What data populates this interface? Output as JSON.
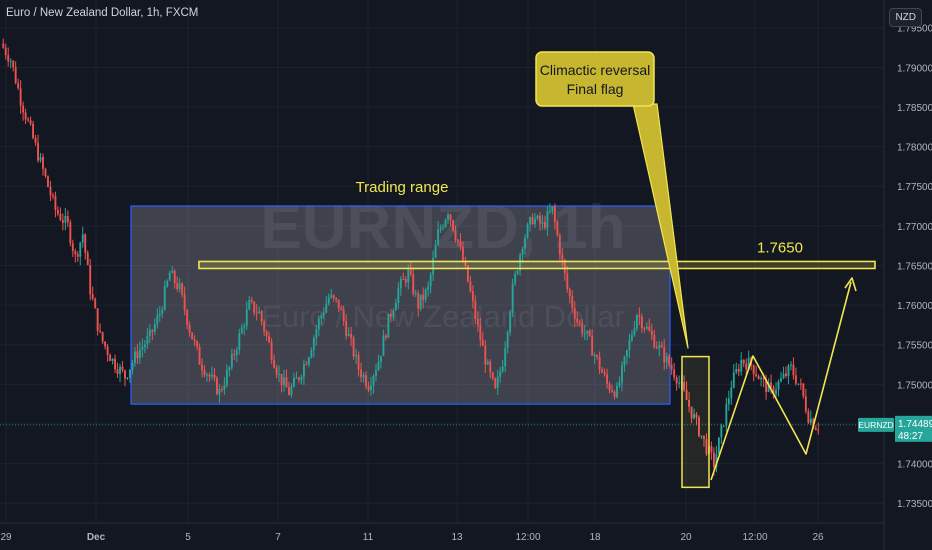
{
  "header": {
    "title": "Euro / New Zealand Dollar, 1h, FXCM",
    "currency": "NZD"
  },
  "watermark": {
    "symbol": "EURNZD, 1h",
    "name": "Euro / New Zealand Dollar"
  },
  "price_tag": {
    "symbol": "EURNZD",
    "price": "1.74489",
    "countdown": "48:27"
  },
  "colors": {
    "background": "#131722",
    "up": "#26a69a",
    "down": "#ef5350",
    "annotation": "#f2e64f",
    "range_border": "#2962ff",
    "callout_fill": "#c7b62f"
  },
  "chart_data": {
    "type": "candlestick",
    "ylim": [
      1.7325,
      1.7985
    ],
    "y_ticks": [
      "1.79500",
      "1.79000",
      "1.78500",
      "1.78000",
      "1.77500",
      "1.77000",
      "1.76500",
      "1.76000",
      "1.75500",
      "1.75000",
      "1.74500",
      "1.74000",
      "1.73500"
    ],
    "x_ticks": [
      "29",
      "Dec",
      "5",
      "7",
      "11",
      "13",
      "12:00",
      "18",
      "20",
      "12:00",
      "26"
    ],
    "trend_path": [
      [
        0,
        1.793
      ],
      [
        4,
        1.791
      ],
      [
        8,
        1.786
      ],
      [
        13,
        1.781
      ],
      [
        18,
        1.776
      ],
      [
        22,
        1.772
      ],
      [
        27,
        1.77
      ],
      [
        30,
        1.766
      ],
      [
        33,
        1.769
      ],
      [
        36,
        1.762
      ],
      [
        40,
        1.756
      ],
      [
        45,
        1.753
      ],
      [
        50,
        1.751
      ],
      [
        55,
        1.754
      ],
      [
        60,
        1.756
      ],
      [
        64,
        1.759
      ],
      [
        68,
        1.764
      ],
      [
        72,
        1.762
      ],
      [
        76,
        1.757
      ],
      [
        80,
        1.753
      ],
      [
        84,
        1.751
      ],
      [
        88,
        1.749
      ],
      [
        92,
        1.752
      ],
      [
        96,
        1.756
      ],
      [
        100,
        1.76
      ],
      [
        104,
        1.759
      ],
      [
        108,
        1.755
      ],
      [
        112,
        1.751
      ],
      [
        116,
        1.749
      ],
      [
        120,
        1.751
      ],
      [
        124,
        1.754
      ],
      [
        128,
        1.758
      ],
      [
        132,
        1.761
      ],
      [
        136,
        1.76
      ],
      [
        140,
        1.756
      ],
      [
        144,
        1.752
      ],
      [
        148,
        1.75
      ],
      [
        152,
        1.753
      ],
      [
        156,
        1.758
      ],
      [
        160,
        1.762
      ],
      [
        164,
        1.764
      ],
      [
        168,
        1.76
      ],
      [
        172,
        1.762
      ],
      [
        176,
        1.769
      ],
      [
        180,
        1.772
      ],
      [
        184,
        1.768
      ],
      [
        188,
        1.763
      ],
      [
        192,
        1.757
      ],
      [
        196,
        1.752
      ],
      [
        199,
        1.749
      ],
      [
        202,
        1.753
      ],
      [
        206,
        1.762
      ],
      [
        210,
        1.768
      ],
      [
        214,
        1.771
      ],
      [
        218,
        1.77
      ],
      [
        222,
        1.772
      ],
      [
        225,
        1.767
      ],
      [
        228,
        1.762
      ],
      [
        232,
        1.758
      ],
      [
        236,
        1.756
      ],
      [
        240,
        1.753
      ],
      [
        244,
        1.75
      ],
      [
        248,
        1.749
      ],
      [
        252,
        1.754
      ],
      [
        256,
        1.759
      ],
      [
        260,
        1.757
      ],
      [
        264,
        1.755
      ],
      [
        268,
        1.753
      ],
      [
        272,
        1.751
      ],
      [
        276,
        1.748
      ],
      [
        280,
        1.745
      ],
      [
        284,
        1.742
      ],
      [
        287,
        1.74
      ],
      [
        290,
        1.744
      ],
      [
        294,
        1.75
      ],
      [
        298,
        1.753
      ],
      [
        302,
        1.7525
      ],
      [
        306,
        1.7505
      ],
      [
        310,
        1.749
      ],
      [
        314,
        1.7505
      ],
      [
        318,
        1.752
      ],
      [
        322,
        1.7495
      ],
      [
        325,
        1.746
      ],
      [
        328,
        1.7448
      ]
    ],
    "y_min_plot": 1.7325,
    "annotations": {
      "trading_range_label": "Trading range",
      "trading_range_top": 1.7725,
      "trading_range_bottom": 1.7475,
      "level_value": 1.765,
      "level_label": "1.7650",
      "callout_line1": "Climactic reversal",
      "callout_line2": "Final flag",
      "climax_box_top": 1.7535,
      "climax_box_bottom": 1.737
    }
  }
}
